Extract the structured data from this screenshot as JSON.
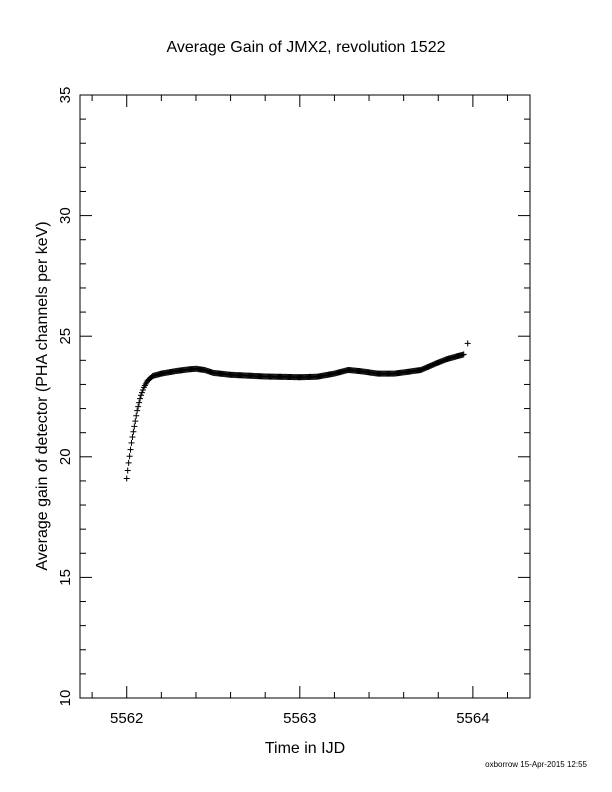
{
  "chart_data": {
    "type": "scatter",
    "title": "Average Gain of JMX2, revolution 1522",
    "xlabel": "Time in IJD",
    "ylabel": "Average gain of detector (PHA channels per keV)",
    "xlim": [
      5561.73,
      5564.33
    ],
    "ylim": [
      10,
      35
    ],
    "xticks": [
      5562,
      5563,
      5564
    ],
    "yticks": [
      10,
      15,
      20,
      25,
      30,
      35
    ],
    "marker": "+",
    "color": "#000000",
    "grid": false,
    "footer": "oxborrow 15-Apr-2015 12:55",
    "curve": [
      [
        5562.0,
        19.1
      ],
      [
        5562.01,
        19.7
      ],
      [
        5562.02,
        20.2
      ],
      [
        5562.03,
        20.7
      ],
      [
        5562.04,
        21.1
      ],
      [
        5562.05,
        21.5
      ],
      [
        5562.06,
        21.9
      ],
      [
        5562.07,
        22.2
      ],
      [
        5562.08,
        22.5
      ],
      [
        5562.09,
        22.7
      ],
      [
        5562.1,
        22.9
      ],
      [
        5562.12,
        23.15
      ],
      [
        5562.15,
        23.35
      ],
      [
        5562.2,
        23.45
      ],
      [
        5562.28,
        23.55
      ],
      [
        5562.35,
        23.62
      ],
      [
        5562.4,
        23.65
      ],
      [
        5562.45,
        23.6
      ],
      [
        5562.5,
        23.48
      ],
      [
        5562.6,
        23.4
      ],
      [
        5562.8,
        23.33
      ],
      [
        5563.0,
        23.3
      ],
      [
        5563.1,
        23.32
      ],
      [
        5563.2,
        23.45
      ],
      [
        5563.28,
        23.6
      ],
      [
        5563.35,
        23.55
      ],
      [
        5563.45,
        23.45
      ],
      [
        5563.55,
        23.45
      ],
      [
        5563.7,
        23.6
      ],
      [
        5563.78,
        23.85
      ],
      [
        5563.85,
        24.05
      ],
      [
        5563.95,
        24.25
      ]
    ],
    "outlier": [
      5563.97,
      24.7
    ]
  }
}
